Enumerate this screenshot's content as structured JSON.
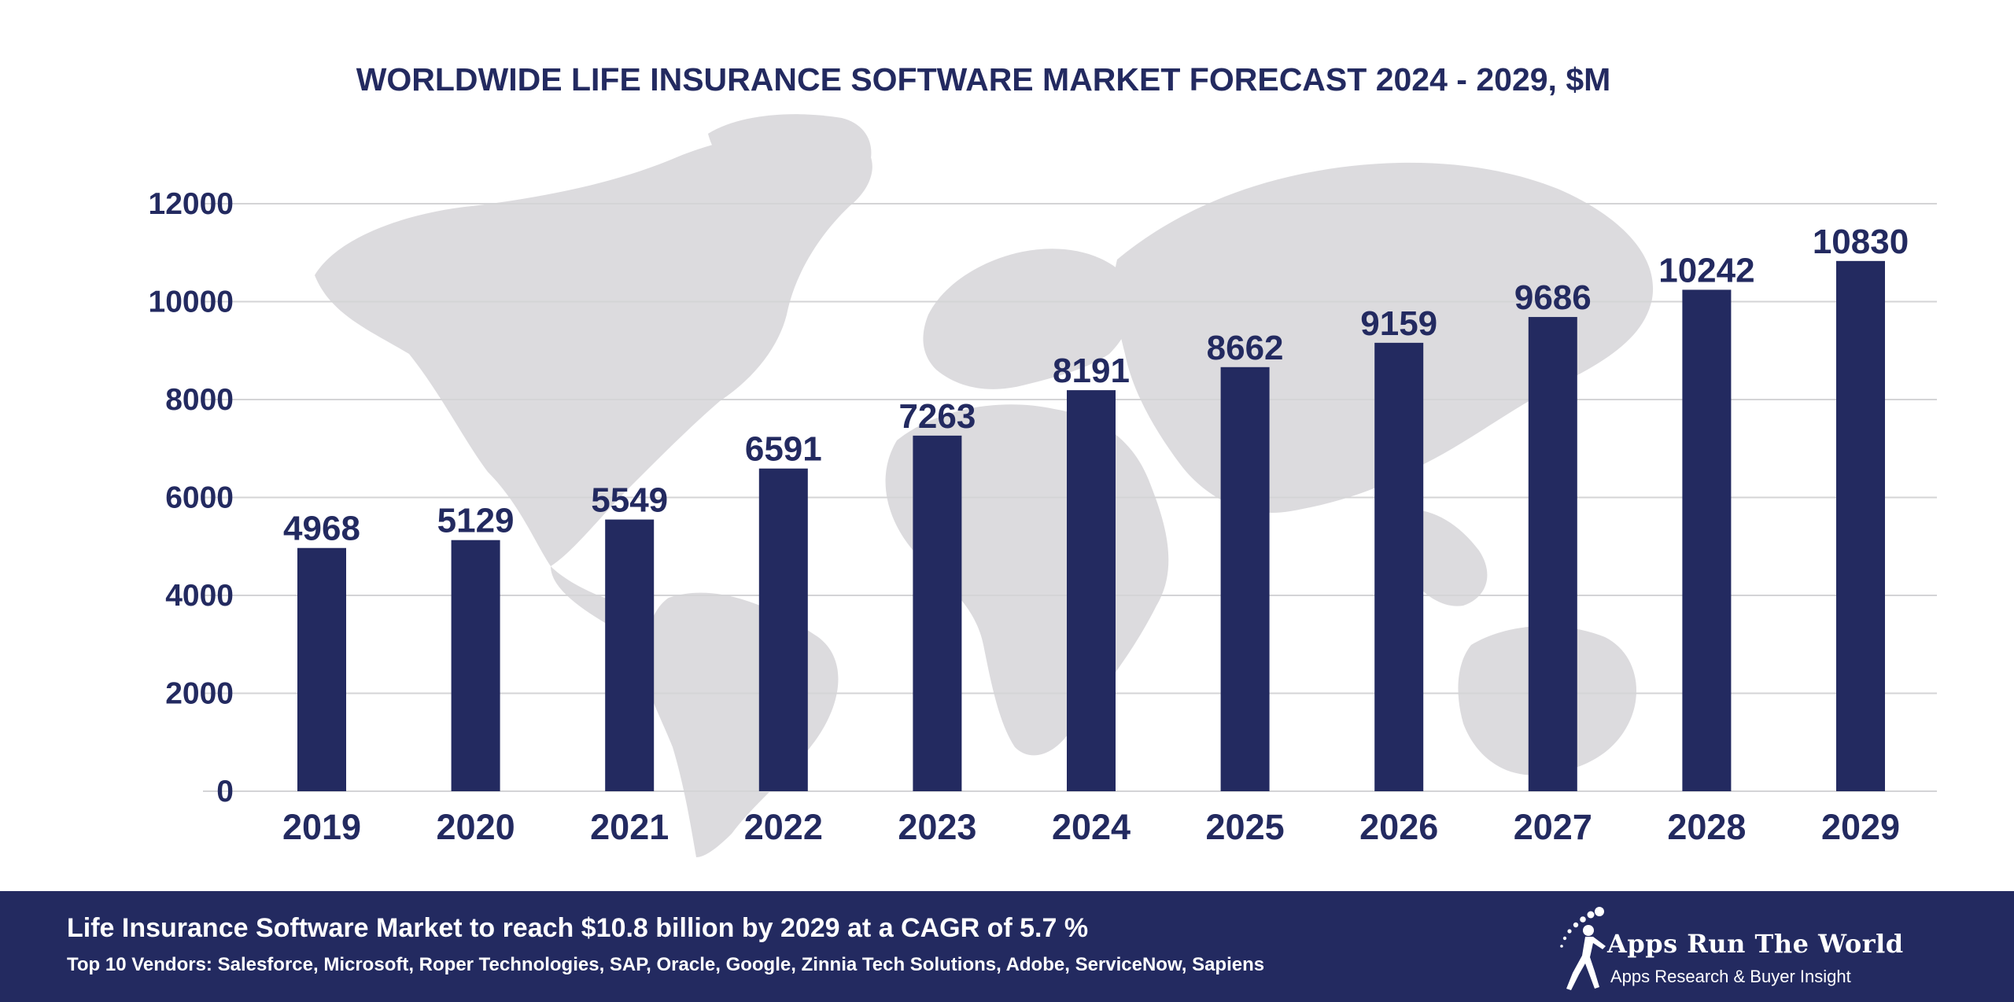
{
  "chart_data": {
    "type": "bar",
    "title": "WORLDWIDE LIFE INSURANCE SOFTWARE MARKET FORECAST 2024 - 2029, $M",
    "categories": [
      "2019",
      "2020",
      "2021",
      "2022",
      "2023",
      "2024",
      "2025",
      "2026",
      "2027",
      "2028",
      "2029"
    ],
    "values": [
      4968,
      5129,
      5549,
      6591,
      7263,
      8191,
      8662,
      9159,
      9686,
      10242,
      10830
    ],
    "ylim": [
      0,
      12000
    ],
    "yticks": [
      0,
      2000,
      4000,
      6000,
      8000,
      10000,
      12000
    ],
    "xlabel": "",
    "ylabel": "",
    "grid": true,
    "legend": "none",
    "bar_color": "#232a60",
    "background": "world-map"
  },
  "footer": {
    "headline": "Life Insurance Software Market to reach $10.8 billion by 2029 at a CAGR of 5.7 %",
    "vendors": "Top 10 Vendors: Salesforce, Microsoft, Roper Technologies, SAP, Oracle, Google, Zinnia Tech Solutions, Adobe, ServiceNow, Sapiens",
    "background_color": "#232a60"
  },
  "logo": {
    "name": "Apps Run The World",
    "tagline": "Apps Research & Buyer Insight",
    "icon": "runner-icon"
  }
}
